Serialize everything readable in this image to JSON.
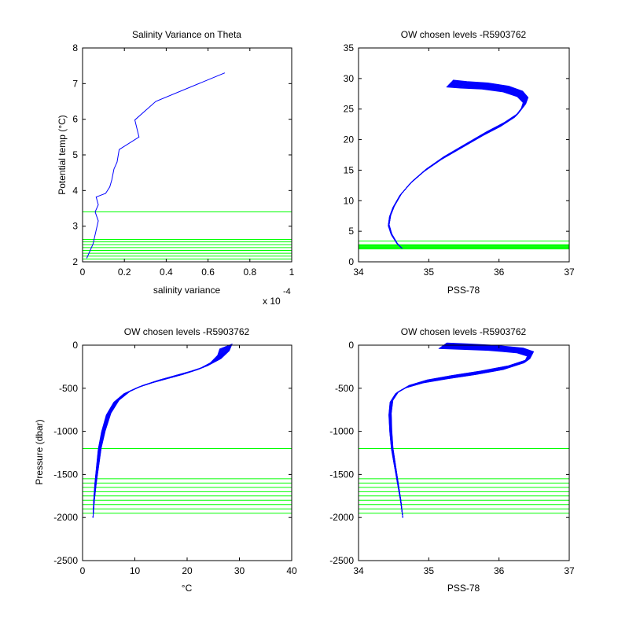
{
  "chart_data": [
    {
      "type": "line",
      "title": "Salinity Variance on Theta",
      "xlabel": "salinity variance",
      "ylabel": "Potential temp (°C)",
      "xlim": [
        0,
        1
      ],
      "ylim": [
        2,
        8
      ],
      "x_ticks": [
        "0",
        "0.2",
        "0.4",
        "0.6",
        "0.8",
        "1"
      ],
      "y_ticks": [
        "2",
        "3",
        "4",
        "5",
        "6",
        "7",
        "8"
      ],
      "x_exponent": "x 10",
      "x_exponent_power": "-4",
      "grid": false,
      "line_color": "#0000ff",
      "level_color": "#00ff00",
      "series": [
        {
          "x": [
            2e-06,
            5e-06,
            7.5e-06,
            6e-06,
            7.5e-06,
            6.5e-06,
            1.1e-05,
            1.3e-05,
            1.4e-05,
            1.5e-05,
            1.65e-05,
            1.75e-05,
            2.7e-05,
            2.5e-05,
            3.5e-05,
            6.8e-05
          ],
          "y": [
            2.1,
            2.5,
            3.15,
            3.4,
            3.6,
            3.82,
            3.92,
            4.1,
            4.3,
            4.6,
            4.8,
            5.15,
            5.5,
            5.98,
            6.5,
            7.3
          ]
        }
      ],
      "horizontal_levels": [
        2.08,
        2.16,
        2.24,
        2.32,
        2.4,
        2.48,
        2.56,
        2.63,
        3.4
      ]
    },
    {
      "type": "line",
      "title": "OW chosen levels -R5903762",
      "xlabel": "PSS-78",
      "ylabel": "",
      "xlim": [
        34,
        37
      ],
      "ylim": [
        0,
        35
      ],
      "x_ticks": [
        "34",
        "35",
        "36",
        "37"
      ],
      "y_ticks": [
        "0",
        "5",
        "10",
        "15",
        "20",
        "25",
        "30",
        "35"
      ],
      "grid": false,
      "line_color": "#0000ff",
      "level_color": "#00ff00",
      "series": [
        {
          "x": [
            34.62,
            34.55,
            34.47,
            34.43,
            34.45,
            34.5,
            34.6,
            34.75,
            34.95,
            35.2,
            35.5,
            35.8,
            36.05,
            36.25,
            36.35,
            36.38,
            36.3,
            36.1,
            35.8,
            35.5,
            35.3
          ],
          "y": [
            2.2,
            3.0,
            4.5,
            6.0,
            7.5,
            9.0,
            11.0,
            13.0,
            15.0,
            17.0,
            19.0,
            21.0,
            22.5,
            24.0,
            25.5,
            26.5,
            27.5,
            28.3,
            28.8,
            29.0,
            29.2
          ]
        }
      ],
      "horizontal_levels": [
        2.1,
        2.2,
        2.3,
        2.4,
        2.5,
        2.6,
        2.7,
        2.8,
        3.4
      ]
    },
    {
      "type": "line",
      "title": "OW chosen levels -R5903762",
      "xlabel": "°C",
      "ylabel": "Pressure (dbar)",
      "xlim": [
        0,
        40
      ],
      "ylim": [
        -2500,
        0
      ],
      "x_ticks": [
        "0",
        "10",
        "20",
        "30",
        "40"
      ],
      "y_ticks": [
        "-2500",
        "-2000",
        "-1500",
        "-1000",
        "-500",
        "0"
      ],
      "grid": false,
      "line_color": "#0000ff",
      "level_color": "#00ff00",
      "series": [
        {
          "x": [
            2.0,
            2.2,
            2.5,
            2.9,
            3.3,
            4.0,
            5.0,
            6.5,
            8.5,
            11.0,
            14.0,
            17.0,
            20.0,
            23.0,
            25.5,
            27.0,
            27.5
          ],
          "y": [
            -2000,
            -1800,
            -1600,
            -1400,
            -1200,
            -1000,
            -800,
            -650,
            -550,
            -480,
            -420,
            -370,
            -320,
            -260,
            -180,
            -90,
            -10
          ]
        }
      ],
      "horizontal_levels": [
        -1950,
        -1900,
        -1850,
        -1800,
        -1750,
        -1700,
        -1650,
        -1600,
        -1550,
        -1200
      ]
    },
    {
      "type": "line",
      "title": "OW chosen levels -R5903762",
      "xlabel": "PSS-78",
      "ylabel": "",
      "xlim": [
        34,
        37
      ],
      "ylim": [
        -2500,
        0
      ],
      "x_ticks": [
        "34",
        "35",
        "36",
        "37"
      ],
      "y_ticks": [
        "-2500",
        "-2000",
        "-1500",
        "-1000",
        "-500",
        "0"
      ],
      "grid": false,
      "line_color": "#0000ff",
      "level_color": "#00ff00",
      "series": [
        {
          "x": [
            34.63,
            34.6,
            34.56,
            34.52,
            34.48,
            34.46,
            34.45,
            34.47,
            34.55,
            34.7,
            34.95,
            35.3,
            35.7,
            36.1,
            36.4,
            36.45,
            36.3,
            35.9,
            35.5,
            35.2
          ],
          "y": [
            -2000,
            -1800,
            -1600,
            -1400,
            -1200,
            -1000,
            -800,
            -650,
            -550,
            -480,
            -420,
            -370,
            -320,
            -260,
            -180,
            -100,
            -60,
            -30,
            -15,
            -5
          ]
        }
      ],
      "horizontal_levels": [
        -1950,
        -1900,
        -1850,
        -1800,
        -1750,
        -1700,
        -1650,
        -1600,
        -1550,
        -1200
      ]
    }
  ]
}
